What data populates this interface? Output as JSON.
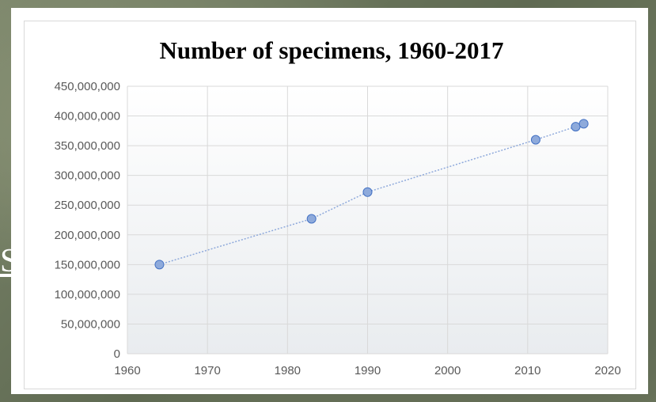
{
  "background": {
    "letter": "S"
  },
  "colors": {
    "grid": "#d9d9d9",
    "plot_fill_top": "#ffffff",
    "plot_fill_bottom": "#e9ecef",
    "series_line": "#8ea9db",
    "marker_fill": "#8eaadb",
    "marker_stroke": "#4472c4"
  },
  "chart_data": {
    "type": "scatter",
    "title": "Number of specimens, 1960-2017",
    "xlabel": "",
    "ylabel": "",
    "xlim": [
      1960,
      2020
    ],
    "ylim": [
      0,
      450000000
    ],
    "x_ticks": [
      1960,
      1970,
      1980,
      1990,
      2000,
      2010,
      2020
    ],
    "y_ticks": [
      0,
      50000000,
      100000000,
      150000000,
      200000000,
      250000000,
      300000000,
      350000000,
      400000000,
      450000000
    ],
    "y_tick_labels": [
      "0",
      "50,000,000",
      "100,000,000",
      "150,000,000",
      "200,000,000",
      "250,000,000",
      "300,000,000",
      "350,000,000",
      "400,000,000",
      "450,000,000"
    ],
    "grid": true,
    "legend": "none",
    "series": [
      {
        "points": [
          {
            "x": 1964,
            "y": 150000000
          },
          {
            "x": 1983,
            "y": 227000000
          },
          {
            "x": 1990,
            "y": 272000000
          },
          {
            "x": 2011,
            "y": 360000000
          },
          {
            "x": 2016,
            "y": 382000000
          },
          {
            "x": 2017,
            "y": 387000000
          }
        ]
      }
    ]
  }
}
